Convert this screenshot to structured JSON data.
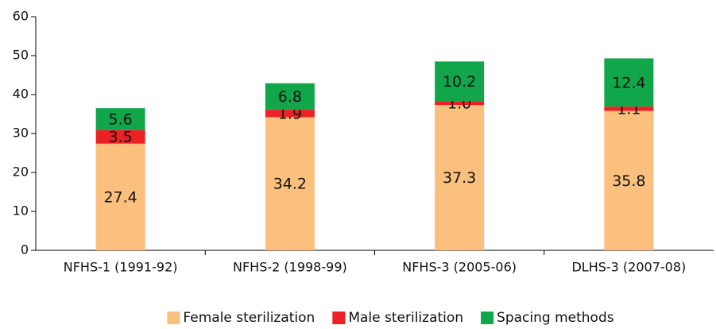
{
  "chart_data": {
    "type": "stacked-bar",
    "categories": [
      "NFHS-1 (1991-92)",
      "NFHS-2 (1998-99)",
      "NFHS-3 (2005-06)",
      "DLHS-3 (2007-08)"
    ],
    "series": [
      {
        "name": "Female sterilization",
        "color": "#fbbf7e",
        "values": [
          27.4,
          34.2,
          37.3,
          35.8
        ]
      },
      {
        "name": "Male sterilization",
        "color": "#ed2024",
        "values": [
          3.5,
          1.9,
          1.0,
          1.1
        ],
        "value_labels": [
          "3.5",
          "1.9",
          "1.0",
          "1.1"
        ]
      },
      {
        "name": "Spacing methods",
        "color": "#12a64a",
        "values": [
          5.6,
          6.8,
          10.2,
          12.4
        ]
      }
    ],
    "ylim": [
      0,
      60
    ],
    "yticks": [
      0,
      10,
      20,
      30,
      40,
      50,
      60
    ],
    "grid": false,
    "legend": "bottom"
  }
}
